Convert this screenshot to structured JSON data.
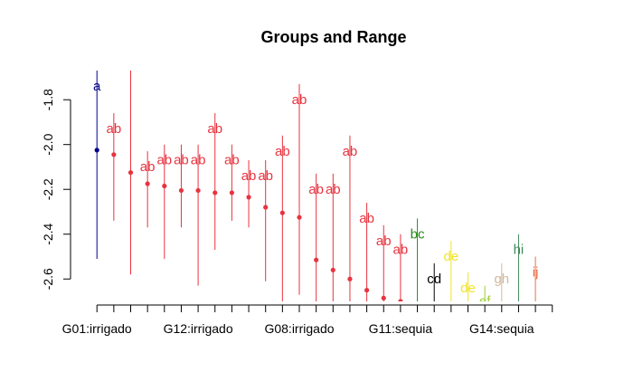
{
  "chart_data": {
    "type": "scatter",
    "title": "Groups and Range",
    "xlabel": "",
    "ylabel": "",
    "ylim": [
      -2.7,
      -1.67
    ],
    "yticks": [
      -2.6,
      -2.4,
      -2.2,
      -2.0,
      -1.8
    ],
    "ytick_labels": [
      "-2.6",
      "-2.4",
      "-2.2",
      "-2.0",
      "-1.8"
    ],
    "n_groups": 28,
    "xtick_labels": [
      {
        "index": 1,
        "label": "G01:irrigado"
      },
      {
        "index": 7,
        "label": "G12:irrigado"
      },
      {
        "index": 13,
        "label": "G08:irrigado"
      },
      {
        "index": 19,
        "label": "G11:sequia"
      },
      {
        "index": 25,
        "label": "G14:sequia"
      }
    ],
    "groups": [
      {
        "index": 1,
        "mean": -2.025,
        "low": -2.51,
        "high": -1.67,
        "label": "a",
        "color": "#00008B"
      },
      {
        "index": 2,
        "mean": -2.045,
        "low": -2.34,
        "high": -1.86,
        "label": "ab",
        "color": "#E8333F"
      },
      {
        "index": 3,
        "mean": -2.125,
        "low": -2.58,
        "high": -1.67,
        "label": "",
        "color": "#E8333F"
      },
      {
        "index": 4,
        "mean": -2.175,
        "low": -2.37,
        "high": -2.03,
        "label": "ab",
        "color": "#E8333F"
      },
      {
        "index": 5,
        "mean": -2.185,
        "low": -2.51,
        "high": -2.0,
        "label": "ab",
        "color": "#E8333F"
      },
      {
        "index": 6,
        "mean": -2.205,
        "low": -2.37,
        "high": -2.0,
        "label": "ab",
        "color": "#E8333F"
      },
      {
        "index": 7,
        "mean": -2.205,
        "low": -2.63,
        "high": -2.0,
        "label": "ab",
        "color": "#E8333F"
      },
      {
        "index": 8,
        "mean": -2.215,
        "low": -2.47,
        "high": -1.86,
        "label": "ab",
        "color": "#E8333F"
      },
      {
        "index": 9,
        "mean": -2.215,
        "low": -2.34,
        "high": -2.0,
        "label": "ab",
        "color": "#E8333F"
      },
      {
        "index": 10,
        "mean": -2.235,
        "low": -2.37,
        "high": -2.07,
        "label": "ab",
        "color": "#E8333F"
      },
      {
        "index": 11,
        "mean": -2.28,
        "low": -2.61,
        "high": -2.07,
        "label": "ab",
        "color": "#E8333F"
      },
      {
        "index": 12,
        "mean": -2.305,
        "low": -2.7,
        "high": -1.96,
        "label": "ab",
        "color": "#E8333F"
      },
      {
        "index": 13,
        "mean": -2.325,
        "low": -2.67,
        "high": -1.73,
        "label": "ab",
        "color": "#E8333F"
      },
      {
        "index": 14,
        "mean": -2.515,
        "low": -2.7,
        "high": -2.13,
        "label": "ab",
        "color": "#E8333F"
      },
      {
        "index": 15,
        "mean": -2.56,
        "low": -2.7,
        "high": -2.13,
        "label": "ab",
        "color": "#E8333F"
      },
      {
        "index": 16,
        "mean": -2.6,
        "low": -2.7,
        "high": -1.96,
        "label": "ab",
        "color": "#E8333F"
      },
      {
        "index": 17,
        "mean": -2.65,
        "low": -2.7,
        "high": -2.26,
        "label": "ab",
        "color": "#E8333F"
      },
      {
        "index": 18,
        "mean": -2.685,
        "low": -2.7,
        "high": -2.36,
        "label": "ab",
        "color": "#E8333F"
      },
      {
        "index": 19,
        "mean": -2.7,
        "low": -2.7,
        "high": -2.4,
        "label": "ab",
        "color": "#E8333F"
      },
      {
        "index": 20,
        "mean": -2.72,
        "low": -2.7,
        "high": -2.33,
        "label": "bc",
        "color": "#2E8B1F"
      },
      {
        "index": 21,
        "mean": -2.74,
        "low": -2.7,
        "high": -2.53,
        "label": "cd",
        "color": "#000000"
      },
      {
        "index": 22,
        "mean": -2.76,
        "low": -2.7,
        "high": -2.43,
        "label": "de",
        "color": "#F2E32A"
      },
      {
        "index": 23,
        "mean": -2.78,
        "low": -2.7,
        "high": -2.57,
        "label": "de",
        "color": "#F2E32A"
      },
      {
        "index": 24,
        "mean": -2.8,
        "low": -2.7,
        "high": -2.63,
        "label": "ef",
        "color": "#9ACD32"
      },
      {
        "index": 25,
        "mean": -2.82,
        "low": -2.7,
        "high": -2.53,
        "label": "gh",
        "color": "#D2B9A0"
      },
      {
        "index": 26,
        "mean": -2.84,
        "low": -2.7,
        "high": -2.4,
        "label": "hi",
        "color": "#3E8A5A"
      },
      {
        "index": 27,
        "mean": -2.86,
        "low": -2.7,
        "high": -2.5,
        "label": "ij",
        "color": "#E8704A"
      },
      {
        "index": 28,
        "mean": -2.88,
        "low": -2.7,
        "high": -2.7,
        "label": "",
        "color": "#E8333F"
      }
    ]
  }
}
